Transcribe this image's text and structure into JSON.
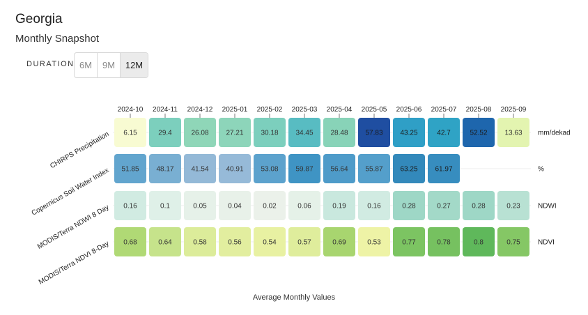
{
  "header": {
    "title": "Georgia",
    "subtitle": "Monthly Snapshot"
  },
  "duration": {
    "label": "DURATION",
    "options": [
      "6M",
      "9M",
      "12M"
    ],
    "selected": "12M"
  },
  "chart_data": {
    "type": "heatmap",
    "title": "",
    "xlabel": "Average Monthly Values",
    "categories": [
      "2024-10",
      "2024-11",
      "2024-12",
      "2025-01",
      "2025-02",
      "2025-03",
      "2025-04",
      "2025-05",
      "2025-06",
      "2025-07",
      "2025-08",
      "2025-09"
    ],
    "series": [
      {
        "name": "CHIRPS Precipitation",
        "unit": "mm/dekad",
        "values": [
          "6.15",
          "29.4",
          "26.08",
          "27.21",
          "30.18",
          "34.45",
          "28.48",
          "57.83",
          "43.25",
          "42.7",
          "52.52",
          "13.63"
        ],
        "colors": [
          "#f8fbd2",
          "#7ccfbd",
          "#8fd6b8",
          "#8dd5ba",
          "#7ccfbd",
          "#58bcc2",
          "#88d3b8",
          "#1f4ea1",
          "#2f9fc6",
          "#2fa3c5",
          "#1e66ad",
          "#e3f4b0"
        ]
      },
      {
        "name": "Copernicus Soil Water Index",
        "unit": "%",
        "values": [
          "51.85",
          "48.17",
          "41.54",
          "40.91",
          "53.08",
          "59.87",
          "56.64",
          "55.87",
          "63.25",
          "61.97",
          null,
          null
        ],
        "colors": [
          "#62a5ce",
          "#79afd2",
          "#94b9d7",
          "#96bad8",
          "#5ca2cd",
          "#3f94c4",
          "#4e9bc9",
          "#549fcb",
          "#3389bb",
          "#378dbf",
          null,
          null
        ]
      },
      {
        "name": "MODIS/Terra NDWI 8 Day",
        "unit": "NDWI",
        "values": [
          "0.16",
          "0.1",
          "0.05",
          "0.04",
          "0.02",
          "0.06",
          "0.19",
          "0.16",
          "0.28",
          "0.27",
          "0.28",
          "0.23"
        ],
        "colors": [
          "#d1ebe2",
          "#dff0e8",
          "#e6f1e9",
          "#e8f1e9",
          "#ebf1ea",
          "#e5f1e8",
          "#c9e8de",
          "#d1ebe2",
          "#9ed7c6",
          "#a3d9c8",
          "#9ed7c6",
          "#b8e1d3"
        ]
      },
      {
        "name": "MODIS/Terra NDVI 8-Day",
        "unit": "NDVI",
        "values": [
          "0.68",
          "0.64",
          "0.58",
          "0.56",
          "0.54",
          "0.57",
          "0.69",
          "0.53",
          "0.77",
          "0.78",
          "0.8",
          "0.75"
        ],
        "colors": [
          "#b0d975",
          "#c6e38b",
          "#dcec9a",
          "#e2ee9f",
          "#e8f1a2",
          "#dfed9c",
          "#a8d56f",
          "#eef3a6",
          "#7cc462",
          "#76c160",
          "#5fb85b",
          "#85c765"
        ]
      }
    ]
  }
}
